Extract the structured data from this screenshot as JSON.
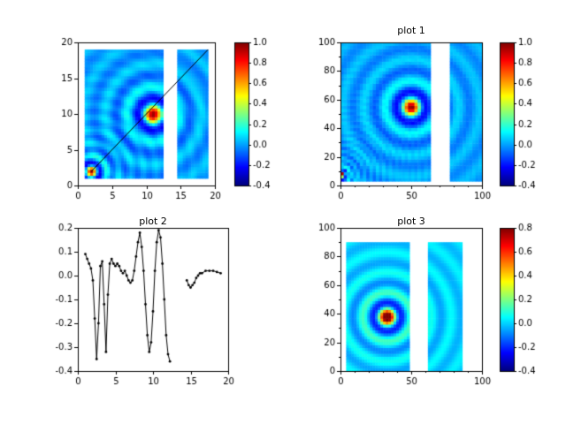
{
  "figure": {
    "background": "#ffffff",
    "text_color": "#000000"
  },
  "chart_data": [
    {
      "id": "heatmap-untitled",
      "type": "heatmap",
      "title": "",
      "xlim": [
        0,
        20
      ],
      "ylim": [
        0,
        20
      ],
      "xticks": [
        0,
        5,
        10,
        15,
        20
      ],
      "xtick_labels": [
        "0",
        "5",
        "10",
        "15",
        "20"
      ],
      "yticks": [
        0,
        5,
        10,
        15,
        20
      ],
      "ytick_labels": [
        "0",
        "5",
        "10",
        "15",
        "20"
      ],
      "xminor": [],
      "yminor": [],
      "colormap": "jet",
      "vmin": -0.4,
      "vmax": 1.0,
      "colorbar": {
        "ticks": [
          1.0,
          0.8,
          0.6,
          0.4,
          0.2,
          0.0,
          -0.2,
          -0.4
        ],
        "labels": [
          "1.0",
          "0.8",
          "0.6",
          "0.4",
          "0.2",
          "0.0",
          "-0.2",
          "-0.4"
        ]
      },
      "data_region": {
        "x0": 1,
        "x1": 19,
        "y0": 1,
        "y1": 19
      },
      "gap_x": [
        12.6,
        14.4
      ],
      "peaks": [
        {
          "x": 11,
          "y": 10,
          "freq": 2.0,
          "amp": 1
        },
        {
          "x": 2,
          "y": 2,
          "freq": 3.5,
          "amp": 1
        }
      ],
      "overlay_line": {
        "x1": 2,
        "y1": 2,
        "x2": 19,
        "y2": 19
      }
    },
    {
      "id": "plot-1",
      "type": "heatmap",
      "title": "plot 1",
      "xlim": [
        0,
        100
      ],
      "ylim": [
        0,
        100
      ],
      "xticks": [
        0,
        50,
        100
      ],
      "xtick_labels": [
        "0",
        "50",
        "100"
      ],
      "yticks": [
        0,
        20,
        40,
        60,
        80,
        100
      ],
      "ytick_labels": [
        "0",
        "20",
        "40",
        "60",
        "80",
        "100"
      ],
      "xminor": [
        10,
        20,
        30,
        40,
        60,
        70,
        80,
        90
      ],
      "yminor": [
        10,
        30,
        50,
        70,
        90
      ],
      "colormap": "jet",
      "vmin": -0.4,
      "vmax": 1.0,
      "colorbar": {
        "ticks": [
          1.0,
          0.8,
          0.6,
          0.4,
          0.2,
          0.0,
          -0.2,
          -0.4
        ],
        "labels": [
          "1.0",
          "0.8",
          "0.6",
          "0.4",
          "0.2",
          "0.0",
          "-0.2",
          "-0.4"
        ]
      },
      "data_region": {
        "x0": 0,
        "x1": 100,
        "y0": 3,
        "y1": 100
      },
      "gap_x": [
        63,
        78
      ],
      "peaks": [
        {
          "x": 50,
          "y": 55,
          "freq": 0.42,
          "amp": 1
        },
        {
          "x": 1,
          "y": 8,
          "freq": 1.3,
          "amp": 1
        }
      ]
    },
    {
      "id": "plot-2",
      "type": "line",
      "title": "plot 2",
      "xlim": [
        0,
        20
      ],
      "ylim": [
        -0.4,
        0.2
      ],
      "xticks": [
        0,
        5,
        10,
        15,
        20
      ],
      "xtick_labels": [
        "0",
        "5",
        "10",
        "15",
        "20"
      ],
      "yticks": [
        0.2,
        0.1,
        0.0,
        -0.1,
        -0.2,
        -0.3,
        -0.4
      ],
      "ytick_labels": [
        "0.2",
        "0.1",
        "0.0",
        "-0.1",
        "-0.2",
        "-0.3",
        "-0.4"
      ],
      "xminor": [],
      "yminor": [],
      "line_color": "#000000",
      "marker": "dot",
      "segments": [
        [
          [
            1,
            0.09
          ],
          [
            1.25,
            0.07
          ],
          [
            1.5,
            0.05
          ],
          [
            1.75,
            0.03
          ],
          [
            2,
            -0.02
          ],
          [
            2.25,
            -0.18
          ],
          [
            2.5,
            -0.35
          ],
          [
            2.75,
            -0.2
          ],
          [
            3,
            0.04
          ],
          [
            3.25,
            0.06
          ],
          [
            3.5,
            -0.12
          ],
          [
            3.75,
            -0.32
          ],
          [
            4,
            -0.08
          ],
          [
            4.25,
            0.05
          ],
          [
            4.5,
            0.07
          ],
          [
            4.75,
            0.05
          ],
          [
            5,
            0.04
          ],
          [
            5.25,
            0.05
          ],
          [
            5.5,
            0.04
          ],
          [
            5.75,
            0.02
          ],
          [
            6,
            0.01
          ],
          [
            6.25,
            0.02
          ],
          [
            6.5,
            0
          ],
          [
            6.75,
            -0.02
          ],
          [
            7,
            -0.03
          ],
          [
            7.25,
            -0.02
          ],
          [
            7.5,
            0.02
          ],
          [
            7.75,
            0.08
          ],
          [
            8,
            0.14
          ],
          [
            8.25,
            0.18
          ],
          [
            8.5,
            0.12
          ],
          [
            8.75,
            0.02
          ],
          [
            9,
            -0.12
          ],
          [
            9.25,
            -0.25
          ],
          [
            9.5,
            -0.32
          ],
          [
            9.75,
            -0.28
          ],
          [
            10,
            -0.15
          ],
          [
            10.25,
            0.02
          ],
          [
            10.5,
            0.14
          ],
          [
            10.75,
            0.19
          ],
          [
            11,
            0.16
          ],
          [
            11.25,
            0.05
          ],
          [
            11.5,
            -0.1
          ],
          [
            11.75,
            -0.25
          ],
          [
            12,
            -0.33
          ],
          [
            12.25,
            -0.36
          ]
        ],
        [
          [
            14.5,
            -0.02
          ],
          [
            14.75,
            -0.04
          ],
          [
            15,
            -0.05
          ],
          [
            15.25,
            -0.04
          ],
          [
            15.5,
            -0.03
          ],
          [
            15.75,
            -0.01
          ],
          [
            16,
            0
          ],
          [
            16.25,
            0.01
          ],
          [
            16.5,
            0.01
          ],
          [
            17,
            0.02
          ],
          [
            17.5,
            0.02
          ],
          [
            18,
            0.02
          ],
          [
            18.5,
            0.015
          ],
          [
            19,
            0.01
          ]
        ]
      ]
    },
    {
      "id": "plot-3",
      "type": "heatmap",
      "title": "plot 3",
      "xlim": [
        0,
        100
      ],
      "ylim": [
        0,
        100
      ],
      "xticks": [
        0,
        50,
        100
      ],
      "xtick_labels": [
        "0",
        "50",
        "100"
      ],
      "yticks": [
        0,
        20,
        40,
        60,
        80,
        100
      ],
      "ytick_labels": [
        "0",
        "20",
        "40",
        "60",
        "80",
        "100"
      ],
      "xminor": [
        10,
        20,
        30,
        40,
        60,
        70,
        80,
        90
      ],
      "yminor": [
        10,
        30,
        50,
        70,
        90
      ],
      "colormap": "jet",
      "vmin": -0.4,
      "vmax": 0.8,
      "colorbar": {
        "ticks": [
          0.8,
          0.6,
          0.4,
          0.2,
          0.0,
          -0.2,
          -0.4
        ],
        "labels": [
          "0.8",
          "0.6",
          "0.4",
          "0.2",
          "0.0",
          "-0.2",
          "-0.4"
        ]
      },
      "data_region": {
        "x0": 4,
        "x1": 86,
        "y0": 0,
        "y1": 90
      },
      "gap_x": [
        48,
        61
      ],
      "peaks": [
        {
          "x": 33,
          "y": 38,
          "freq": 0.45,
          "amp": 1
        }
      ]
    }
  ]
}
